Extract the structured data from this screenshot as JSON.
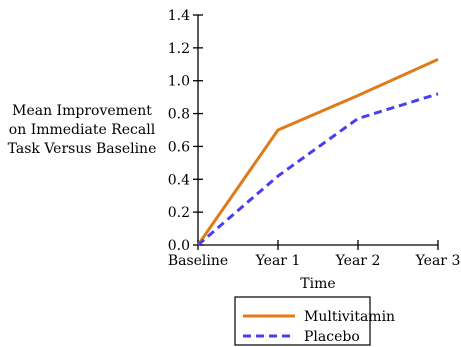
{
  "chart_data": {
    "type": "line",
    "categories": [
      "Baseline",
      "Year 1",
      "Year 2",
      "Year 3"
    ],
    "series": [
      {
        "name": "Multivitamin",
        "values": [
          0.0,
          0.7,
          0.91,
          1.13
        ],
        "color": "#e07b1a",
        "dash": "solid"
      },
      {
        "name": "Placebo",
        "values": [
          0.0,
          0.42,
          0.77,
          0.92
        ],
        "color": "#4a3ff0",
        "dash": "dashed"
      }
    ],
    "ylabel_lines": [
      "Mean Improvement",
      "on Immediate Recall",
      "Task Versus Baseline"
    ],
    "xlabel": "Time",
    "ylim": [
      0.0,
      1.4
    ],
    "yticks": [
      "0.0",
      "0.2",
      "0.4",
      "0.6",
      "0.8",
      "1.0",
      "1.2",
      "1.4"
    ],
    "grid": false,
    "legend_position": "bottom-center"
  }
}
